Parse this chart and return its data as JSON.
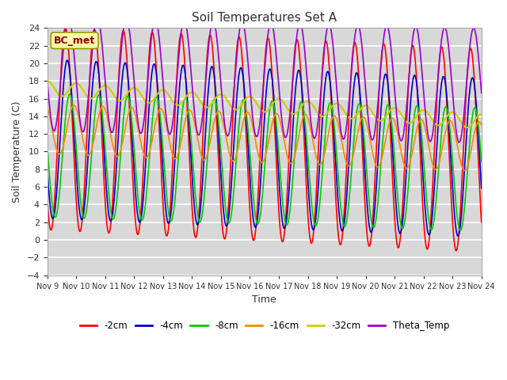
{
  "title": "Soil Temperatures Set A",
  "xlabel": "Time",
  "ylabel": "Soil Temperature (C)",
  "ylim": [
    -4,
    24
  ],
  "xlim": [
    0,
    360
  ],
  "annotation": "BC_met",
  "bg_color": "#d8d8d8",
  "grid_color": "white",
  "x_tick_labels": [
    "Nov 9",
    "Nov 10",
    "Nov 11",
    "Nov 12",
    "Nov 13",
    "Nov 14",
    "Nov 15",
    "Nov 16",
    "Nov 17",
    "Nov 18",
    "Nov 19",
    "Nov 20",
    "Nov 21",
    "Nov 22",
    "Nov 23",
    "Nov 24"
  ],
  "yticks": [
    -4,
    -2,
    0,
    2,
    4,
    6,
    8,
    10,
    12,
    14,
    16,
    18,
    20,
    22,
    24
  ],
  "series": {
    "-2cm": {
      "color": "#ff0000",
      "lw": 1.2
    },
    "-4cm": {
      "color": "#0000cc",
      "lw": 1.2
    },
    "-8cm": {
      "color": "#00cc00",
      "lw": 1.2
    },
    "-16cm": {
      "color": "#ff8800",
      "lw": 1.2
    },
    "-32cm": {
      "color": "#cccc00",
      "lw": 1.5
    },
    "Theta_Temp": {
      "color": "#9900cc",
      "lw": 1.2
    }
  },
  "legend_order": [
    "-2cm",
    "-4cm",
    "-8cm",
    "-16cm",
    "-32cm",
    "Theta_Temp"
  ]
}
